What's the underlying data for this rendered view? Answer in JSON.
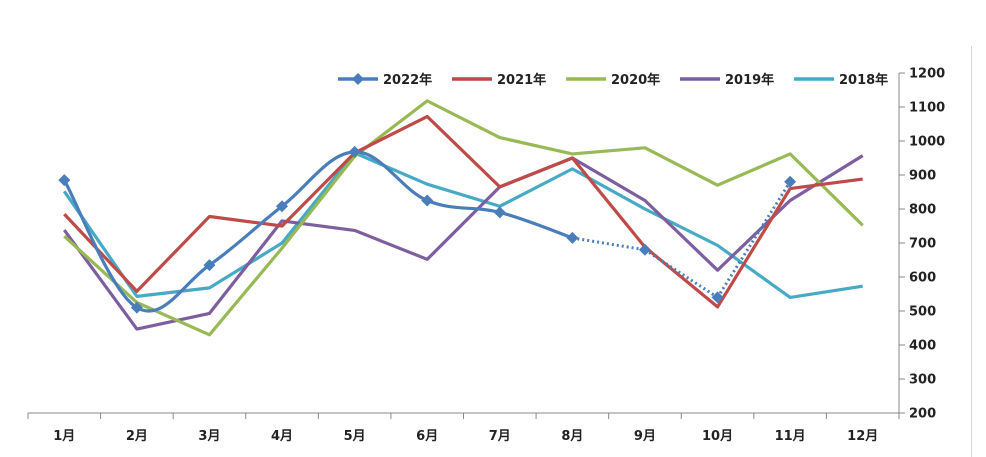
{
  "chart_data": {
    "type": "line",
    "title": "",
    "xlabel": "",
    "ylabel": "",
    "categories": [
      "1月",
      "2月",
      "3月",
      "4月",
      "5月",
      "6月",
      "7月",
      "8月",
      "9月",
      "10月",
      "11月",
      "12月"
    ],
    "ylim": [
      200,
      1200
    ],
    "yticks": [
      200,
      300,
      400,
      500,
      600,
      700,
      800,
      900,
      1000,
      1100,
      1200
    ],
    "y_axis_side": "right",
    "grid": false,
    "legend_position": "top",
    "series": [
      {
        "name": "2022年",
        "color": "#4a7ebb",
        "marker": "diamond",
        "smooth": true,
        "values": [
          885,
          510,
          635,
          808,
          968,
          825,
          790,
          715,
          680,
          540,
          880,
          null
        ],
        "dotted_segments_after_index": [
          7,
          8,
          9
        ]
      },
      {
        "name": "2021年",
        "color": "#be4b48",
        "values": [
          785,
          558,
          778,
          750,
          965,
          1072,
          865,
          950,
          688,
          512,
          860,
          888
        ]
      },
      {
        "name": "2020年",
        "color": "#98b954",
        "values": [
          720,
          525,
          430,
          685,
          955,
          1118,
          1010,
          962,
          980,
          870,
          962,
          752
        ]
      },
      {
        "name": "2019年",
        "color": "#7d5fa0",
        "values": [
          738,
          447,
          493,
          765,
          737,
          652,
          865,
          950,
          825,
          620,
          825,
          957
        ]
      },
      {
        "name": "2018年",
        "color": "#46aac5",
        "values": [
          852,
          543,
          568,
          700,
          965,
          873,
          808,
          918,
          800,
          693,
          540,
          573
        ]
      }
    ]
  }
}
